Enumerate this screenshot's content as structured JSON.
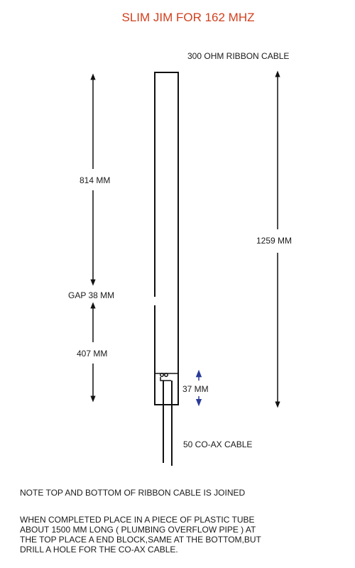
{
  "diagram": {
    "title": "SLIM JIM FOR 162 MHZ",
    "labels": {
      "ribbon_cable": "300 OHM RIBBON CABLE",
      "upper_section": "814 MM",
      "gap": "GAP 38 MM",
      "lower_section": "407 MM",
      "feed_point": "37 MM",
      "total_length": "1259 MM",
      "coax": "50 CO-AX CABLE"
    },
    "notes": [
      "NOTE TOP AND BOTTOM OF RIBBON CABLE IS JOINED",
      "WHEN COMPLETED PLACE IN A PIECE OF PLASTIC TUBE ABOUT 1500 MM LONG ( PLUMBING OVERFLOW PIPE ) AT THE TOP PLACE A END BLOCK,SAME AT THE BOTTOM,BUT DRILL A HOLE FOR THE CO-AX CABLE."
    ],
    "colors": {
      "title": "#d2401e",
      "feed_arrow": "#2a3a9a",
      "lines": "#111111"
    }
  }
}
